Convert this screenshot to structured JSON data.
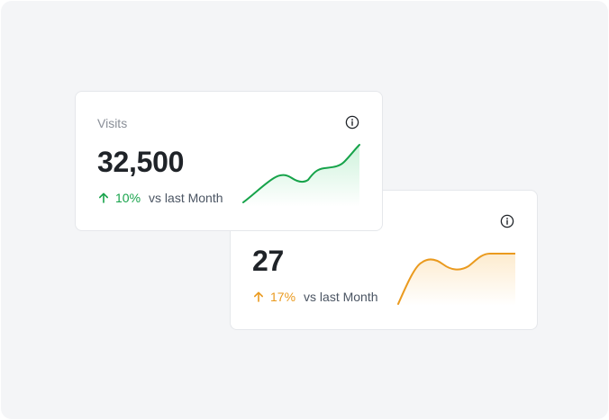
{
  "cards": [
    {
      "title": "Visits",
      "value": "32,500",
      "change": "10%",
      "context": "vs last Month",
      "trend": "up",
      "color": "#16a34a",
      "info_icon": "info-icon",
      "trend_icon": "arrow-up-icon"
    },
    {
      "title": "",
      "value": "27",
      "change": "17%",
      "context": "vs last Month",
      "trend": "up",
      "color": "#ea9a1e",
      "info_icon": "info-icon",
      "trend_icon": "arrow-up-icon"
    }
  ]
}
